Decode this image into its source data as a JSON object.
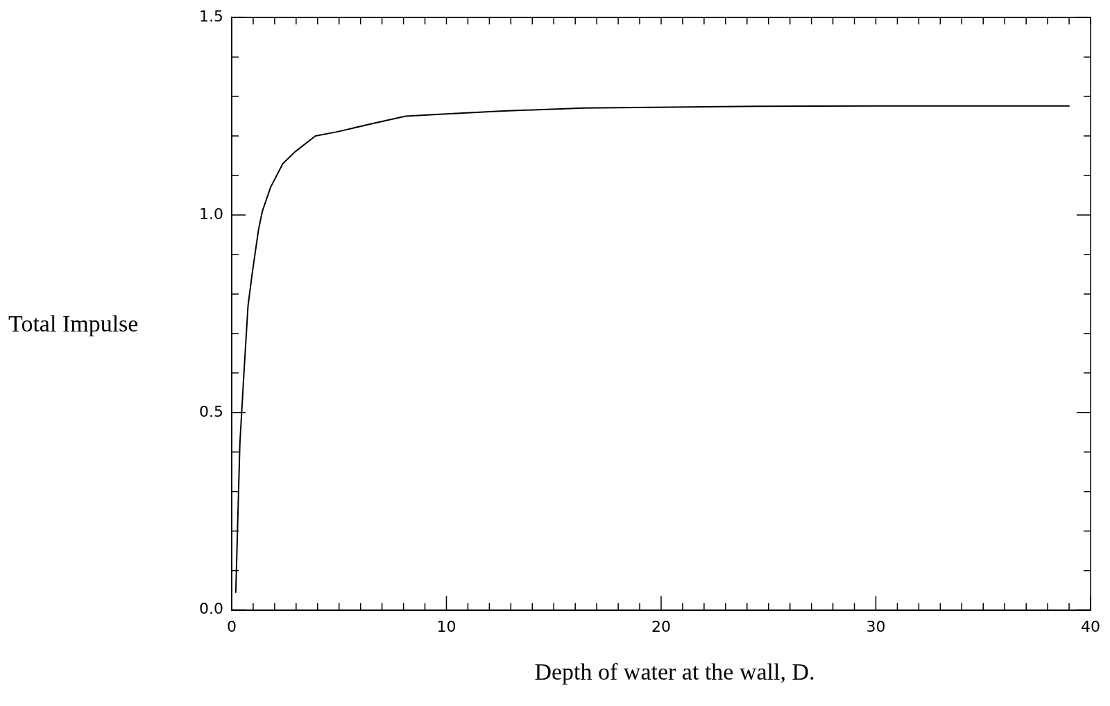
{
  "chart_data": {
    "type": "line",
    "xlabel": "Depth of water at the wall, D.",
    "ylabel": "Total Impulse",
    "x": [
      0.19,
      0.38,
      0.57,
      0.76,
      0.95,
      1.24,
      1.43,
      1.81,
      2.38,
      2.95,
      3.9,
      4.86,
      6.76,
      8.1,
      10,
      12.5,
      16.4,
      24.5,
      30,
      39
    ],
    "series": [
      {
        "color": "#000000",
        "values": [
          0.045,
          0.42,
          0.6,
          0.77,
          0.85,
          0.96,
          1.01,
          1.07,
          1.13,
          1.16,
          1.2,
          1.21,
          1.234,
          1.25,
          1.256,
          1.263,
          1.271,
          1.275,
          1.276,
          1.276
        ]
      }
    ],
    "xlim": [
      0,
      40
    ],
    "xticks": [
      0,
      {
        "value": 1,
        "label": null
      },
      {
        "value": 2,
        "label": null
      },
      {
        "value": 3,
        "label": null
      },
      {
        "value": 4,
        "label": null
      },
      {
        "value": 5,
        "label": null
      },
      {
        "value": 6,
        "label": null
      },
      {
        "value": 7,
        "label": null
      },
      {
        "value": 8,
        "label": null
      },
      {
        "value": 9,
        "label": null
      },
      10,
      {
        "value": 11,
        "label": null
      },
      {
        "value": 12,
        "label": null
      },
      {
        "value": 13,
        "label": null
      },
      {
        "value": 14,
        "label": null
      },
      {
        "value": 15,
        "label": null
      },
      {
        "value": 16,
        "label": null
      },
      {
        "value": 17,
        "label": null
      },
      {
        "value": 18,
        "label": null
      },
      {
        "value": 19,
        "label": null
      },
      20,
      {
        "value": 21,
        "label": null
      },
      {
        "value": 22,
        "label": null
      },
      {
        "value": 23,
        "label": null
      },
      {
        "value": 24,
        "label": null
      },
      {
        "value": 25,
        "label": null
      },
      {
        "value": 26,
        "label": null
      },
      {
        "value": 27,
        "label": null
      },
      {
        "value": 28,
        "label": null
      },
      {
        "value": 29,
        "label": null
      },
      30,
      {
        "value": 31,
        "label": null
      },
      {
        "value": 32,
        "label": null
      },
      {
        "value": 33,
        "label": null
      },
      {
        "value": 34,
        "label": null
      },
      {
        "value": 35,
        "label": null
      },
      {
        "value": 36,
        "label": null
      },
      {
        "value": 37,
        "label": null
      },
      {
        "value": 38,
        "label": null
      },
      {
        "value": 39,
        "label": null
      },
      40
    ],
    "ylim": [
      0,
      1.5
    ],
    "yticks": [
      {
        "value": 0,
        "label": "0.0"
      },
      {
        "value": 0.1,
        "label": null
      },
      {
        "value": 0.2,
        "label": null
      },
      {
        "value": 0.3,
        "label": null
      },
      {
        "value": 0.4,
        "label": null
      },
      {
        "value": 0.5,
        "label": "0.5"
      },
      {
        "value": 0.6,
        "label": null
      },
      {
        "value": 0.7,
        "label": null
      },
      {
        "value": 0.8,
        "label": null
      },
      {
        "value": 0.9,
        "label": null
      },
      {
        "value": 1,
        "label": "1.0"
      },
      {
        "value": 1.1,
        "label": null
      },
      {
        "value": 1.2,
        "label": null
      },
      {
        "value": 1.3,
        "label": null
      },
      {
        "value": 1.4,
        "label": null
      },
      {
        "value": 1.5,
        "label": "1.5"
      }
    ],
    "grid": false,
    "legend": false,
    "marker": "none",
    "line_style": "solid"
  }
}
